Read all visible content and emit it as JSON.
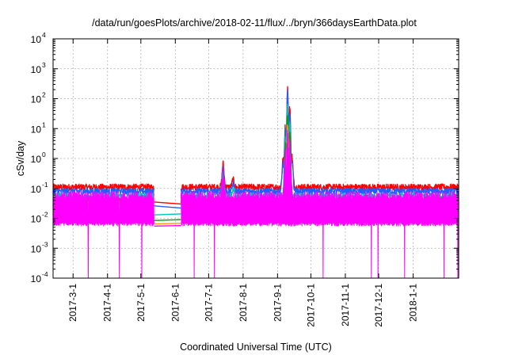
{
  "chart_data": {
    "type": "line",
    "title": "/data/run/goesPlots/archive/2018-02-11/flux/../bryn/366daysEarthData.plot",
    "xlabel": "Coordinated Universal Time (UTC)",
    "ylabel": "cSv/day",
    "yscale": "log",
    "ylim": [
      0.0001,
      10000
    ],
    "xlim": [
      "2017-02-11",
      "2018-02-11"
    ],
    "grid": true,
    "legend": "none",
    "y_ticks": [
      {
        "base": "10",
        "exp": "-4",
        "value": 0.0001
      },
      {
        "base": "10",
        "exp": "-3",
        "value": 0.001
      },
      {
        "base": "10",
        "exp": "-2",
        "value": 0.01
      },
      {
        "base": "10",
        "exp": "-1",
        "value": 0.1
      },
      {
        "base": "10",
        "exp": "0",
        "value": 1
      },
      {
        "base": "10",
        "exp": "1",
        "value": 10
      },
      {
        "base": "10",
        "exp": "2",
        "value": 100
      },
      {
        "base": "10",
        "exp": "3",
        "value": 1000
      },
      {
        "base": "10",
        "exp": "4",
        "value": 10000
      }
    ],
    "x_ticks": [
      {
        "label": "2017-3-1",
        "date": "2017-03-01"
      },
      {
        "label": "2017-4-1",
        "date": "2017-04-01"
      },
      {
        "label": "2017-5-1",
        "date": "2017-05-01"
      },
      {
        "label": "2017-6-1",
        "date": "2017-06-01"
      },
      {
        "label": "2017-7-1",
        "date": "2017-07-01"
      },
      {
        "label": "2017-8-1",
        "date": "2017-08-01"
      },
      {
        "label": "2017-9-1",
        "date": "2017-09-01"
      },
      {
        "label": "2017-10-1",
        "date": "2017-10-01"
      },
      {
        "label": "2017-11-1",
        "date": "2017-11-01"
      },
      {
        "label": "2017-12-1",
        "date": "2017-12-01"
      },
      {
        "label": "2018-1-1",
        "date": "2018-01-01"
      }
    ],
    "data_gap": [
      "2017-05-13",
      "2017-06-06"
    ],
    "series": [
      {
        "color": "#ff0000",
        "baseline": 0.11,
        "gap_line": [
          [
            "2017-05-13",
            0.035
          ],
          [
            "2017-06-06",
            0.03
          ]
        ],
        "peaks": [
          [
            "2017-07-14",
            0.7
          ],
          [
            "2017-07-23",
            0.2
          ],
          [
            "2017-09-06",
            1.0
          ],
          [
            "2017-09-08",
            12
          ],
          [
            "2017-09-10",
            250
          ],
          [
            "2017-09-12",
            60
          ],
          [
            "2017-09-14",
            1.2
          ]
        ]
      },
      {
        "color": "#1f5fff",
        "baseline": 0.08,
        "gap_line": [
          [
            "2017-05-13",
            0.026
          ],
          [
            "2017-06-06",
            0.022
          ]
        ],
        "peaks": [
          [
            "2017-07-14",
            0.5
          ],
          [
            "2017-07-23",
            0.15
          ],
          [
            "2017-09-06",
            0.7
          ],
          [
            "2017-09-08",
            9
          ],
          [
            "2017-09-10",
            180
          ],
          [
            "2017-09-12",
            40
          ],
          [
            "2017-09-14",
            0.9
          ]
        ]
      },
      {
        "color": "#00c0c0",
        "baseline": 0.055,
        "gap_line": [
          [
            "2017-05-13",
            0.013
          ],
          [
            "2017-06-06",
            0.014
          ]
        ],
        "peaks": [
          [
            "2017-07-14",
            0.3
          ],
          [
            "2017-07-23",
            0.1
          ],
          [
            "2017-09-08",
            5
          ],
          [
            "2017-09-10",
            60
          ],
          [
            "2017-09-12",
            15
          ]
        ]
      },
      {
        "color": "#00a000",
        "baseline": 0.04,
        "gap_line": [
          [
            "2017-05-13",
            0.0085
          ],
          [
            "2017-06-06",
            0.009
          ]
        ],
        "peaks": [
          [
            "2017-07-14",
            0.2
          ],
          [
            "2017-09-08",
            3
          ],
          [
            "2017-09-10",
            30
          ],
          [
            "2017-09-12",
            8
          ]
        ]
      },
      {
        "color": "#ff9900",
        "baseline": 0.03,
        "gap_line": [
          [
            "2017-05-13",
            0.0065
          ],
          [
            "2017-06-06",
            0.0068
          ]
        ],
        "peaks": [
          [
            "2017-09-10",
            15
          ]
        ]
      },
      {
        "color": "#ff00ff",
        "baseline": 0.06,
        "floor": 0.0055,
        "gap_line": [
          [
            "2017-05-13",
            0.0055
          ],
          [
            "2017-06-06",
            0.0057
          ]
        ],
        "dropout_floor": 0.0001,
        "peaks": [
          [
            "2017-07-14",
            0.35
          ],
          [
            "2017-09-08",
            2
          ],
          [
            "2017-09-10",
            10
          ],
          [
            "2017-09-12",
            5
          ]
        ]
      }
    ]
  }
}
